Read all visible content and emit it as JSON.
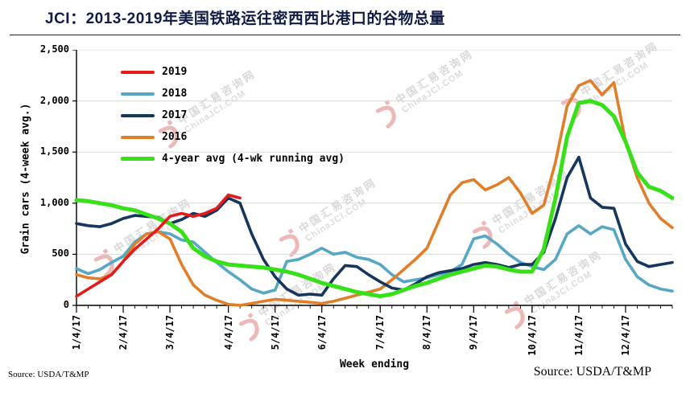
{
  "title": "JCI：2013-2019年美国铁路运往密西西比港口的谷物总量",
  "source_left": "Source: USDA/T&MP",
  "source_right": "Source: USDA/T&MP",
  "watermark": {
    "cn": "中国汇易咨询网",
    "en": "ChinaJCI.COM"
  },
  "chart_data": {
    "type": "line",
    "title": "JCI：2013-2019年美国铁路运往密西西比港口的谷物总量",
    "xlabel": "Week ending",
    "ylabel": "Grain cars (4-week avg.)",
    "ylim": [
      0,
      2500
    ],
    "grid": true,
    "legend_position": "upper-left-inside",
    "x_count": 52,
    "yticks": {
      "values": [
        0,
        500,
        1000,
        1500,
        2000,
        2500
      ],
      "labels": [
        "0",
        "500",
        "1,000",
        "1,500",
        "2,000",
        "2,500"
      ]
    },
    "xticks": {
      "labels": [
        "1/4/17",
        "2/4/17",
        "3/4/17",
        "4/4/17",
        "5/4/17",
        "6/4/17",
        "7/4/17",
        "8/4/17",
        "9/4/17",
        "10/4/17",
        "11/4/17",
        "12/4/17"
      ],
      "indices": [
        0,
        4,
        8,
        13,
        17,
        21,
        26,
        30,
        34,
        39,
        43,
        47
      ]
    },
    "series": [
      {
        "name": "2019",
        "color": "#e31b1b",
        "width": 3.6,
        "values": [
          90,
          160,
          230,
          300,
          430,
          550,
          650,
          750,
          870,
          900,
          870,
          900,
          950,
          1080,
          1050
        ]
      },
      {
        "name": "2018",
        "color": "#56a7c4",
        "width": 3.6,
        "values": [
          360,
          310,
          350,
          420,
          480,
          620,
          700,
          720,
          700,
          640,
          620,
          520,
          420,
          330,
          250,
          160,
          120,
          150,
          430,
          450,
          500,
          560,
          500,
          520,
          470,
          450,
          400,
          300,
          230,
          250,
          270,
          300,
          330,
          400,
          650,
          680,
          600,
          500,
          420,
          380,
          350,
          450,
          700,
          780,
          700,
          770,
          740,
          450,
          280,
          200,
          160,
          140
        ]
      },
      {
        "name": "2017",
        "color": "#17365d",
        "width": 3.6,
        "values": [
          800,
          780,
          770,
          800,
          850,
          880,
          870,
          860,
          800,
          840,
          900,
          870,
          930,
          1050,
          1000,
          700,
          450,
          280,
          160,
          100,
          110,
          100,
          260,
          390,
          380,
          300,
          230,
          170,
          150,
          210,
          280,
          320,
          340,
          360,
          400,
          420,
          400,
          370,
          400,
          400,
          520,
          850,
          1250,
          1450,
          1050,
          960,
          950,
          600,
          430,
          380,
          400,
          420
        ]
      },
      {
        "name": "2016",
        "color": "#e07e2a",
        "width": 3.6,
        "values": [
          300,
          270,
          260,
          300,
          430,
          600,
          700,
          720,
          650,
          400,
          200,
          100,
          50,
          10,
          0,
          20,
          40,
          60,
          50,
          40,
          30,
          20,
          40,
          70,
          100,
          130,
          160,
          250,
          350,
          450,
          560,
          820,
          1080,
          1200,
          1230,
          1130,
          1180,
          1250,
          1100,
          900,
          980,
          1400,
          1950,
          2150,
          2200,
          2060,
          2180,
          1600,
          1250,
          1000,
          850,
          760
        ]
      },
      {
        "name": "4-year avg (4-wk running avg)",
        "color": "#38e01a",
        "width": 5,
        "values": [
          1030,
          1020,
          1000,
          980,
          950,
          930,
          890,
          850,
          800,
          720,
          560,
          480,
          430,
          400,
          390,
          380,
          370,
          350,
          330,
          300,
          260,
          220,
          190,
          160,
          130,
          110,
          90,
          110,
          150,
          190,
          220,
          260,
          300,
          330,
          360,
          390,
          380,
          350,
          330,
          330,
          550,
          1050,
          1650,
          1980,
          2000,
          1960,
          1850,
          1600,
          1300,
          1160,
          1120,
          1050
        ]
      }
    ]
  }
}
